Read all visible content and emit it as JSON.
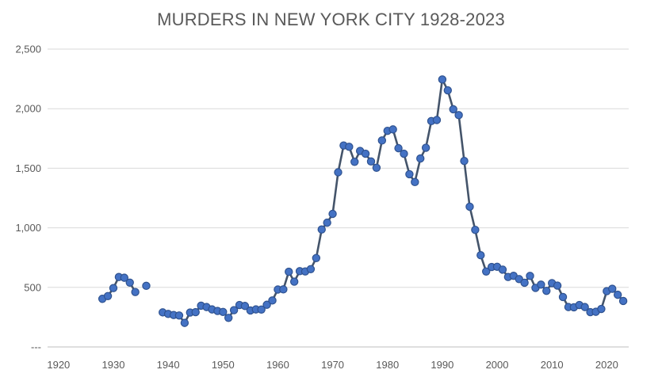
{
  "chart_data": {
    "type": "line",
    "title": "MURDERS IN NEW YORK CITY 1928-2023",
    "xlabel": "",
    "ylabel": "",
    "xlim": [
      1918,
      2024
    ],
    "ylim": [
      0,
      2500
    ],
    "x_ticks": [
      1920,
      1930,
      1940,
      1950,
      1960,
      1970,
      1980,
      1990,
      2000,
      2010,
      2020
    ],
    "x_tick_labels": [
      "1920",
      "1930",
      "1940",
      "1950",
      "1960",
      "1970",
      "1980",
      "1990",
      "2000",
      "2010",
      "2020"
    ],
    "y_ticks": [
      0,
      500,
      1000,
      1500,
      2000,
      2500
    ],
    "y_tick_labels": [
      "---",
      "500",
      "1,000",
      "1,500",
      "2,000",
      "2,500"
    ],
    "grid": "horizontal",
    "legend": "none",
    "line_color": "#44546a",
    "marker_color": "#4472c4",
    "marker_edge": "#2f528f",
    "series": [
      {
        "segments": [
          [
            [
              1928,
              404
            ],
            [
              1929,
              427
            ],
            [
              1930,
              494
            ],
            [
              1931,
              587
            ],
            [
              1932,
              581
            ],
            [
              1933,
              540
            ],
            [
              1934,
              461
            ]
          ],
          [
            [
              1936,
              513
            ]
          ],
          [
            [
              1939,
              290
            ],
            [
              1940,
              277
            ],
            [
              1941,
              268
            ],
            [
              1942,
              264
            ],
            [
              1943,
              202
            ],
            [
              1944,
              289
            ],
            [
              1945,
              292
            ],
            [
              1946,
              346
            ],
            [
              1947,
              335
            ],
            [
              1948,
              315
            ],
            [
              1949,
              302
            ],
            [
              1950,
              294
            ],
            [
              1951,
              244
            ],
            [
              1952,
              309
            ],
            [
              1953,
              352
            ],
            [
              1954,
              344
            ],
            [
              1955,
              306
            ],
            [
              1956,
              315
            ],
            [
              1957,
              314
            ],
            [
              1958,
              354
            ],
            [
              1959,
              390
            ],
            [
              1960,
              482
            ],
            [
              1961,
              483
            ],
            [
              1962,
              631
            ],
            [
              1963,
              548
            ],
            [
              1964,
              636
            ],
            [
              1965,
              634
            ],
            [
              1966,
              653
            ],
            [
              1967,
              746
            ],
            [
              1968,
              986
            ],
            [
              1969,
              1043
            ],
            [
              1970,
              1117
            ],
            [
              1971,
              1466
            ],
            [
              1972,
              1691
            ],
            [
              1973,
              1680
            ],
            [
              1974,
              1554
            ],
            [
              1975,
              1645
            ],
            [
              1976,
              1622
            ],
            [
              1977,
              1557
            ],
            [
              1978,
              1504
            ],
            [
              1979,
              1733
            ],
            [
              1980,
              1814
            ],
            [
              1981,
              1826
            ],
            [
              1982,
              1668
            ],
            [
              1983,
              1622
            ],
            [
              1984,
              1450
            ],
            [
              1985,
              1384
            ],
            [
              1986,
              1582
            ],
            [
              1987,
              1672
            ],
            [
              1988,
              1896
            ],
            [
              1989,
              1905
            ],
            [
              1990,
              2245
            ],
            [
              1991,
              2154
            ],
            [
              1992,
              1995
            ],
            [
              1993,
              1946
            ],
            [
              1994,
              1561
            ],
            [
              1995,
              1177
            ],
            [
              1996,
              983
            ],
            [
              1997,
              770
            ],
            [
              1998,
              633
            ],
            [
              1999,
              671
            ],
            [
              2000,
              673
            ],
            [
              2001,
              649
            ],
            [
              2002,
              587
            ],
            [
              2003,
              597
            ],
            [
              2004,
              570
            ],
            [
              2005,
              539
            ],
            [
              2006,
              596
            ],
            [
              2007,
              496
            ],
            [
              2008,
              523
            ],
            [
              2009,
              471
            ],
            [
              2010,
              536
            ],
            [
              2011,
              515
            ],
            [
              2012,
              419
            ],
            [
              2013,
              335
            ],
            [
              2014,
              333
            ],
            [
              2015,
              352
            ],
            [
              2016,
              335
            ],
            [
              2017,
              292
            ],
            [
              2018,
              295
            ],
            [
              2019,
              319
            ],
            [
              2020,
              468
            ],
            [
              2021,
              488
            ],
            [
              2022,
              438
            ],
            [
              2023,
              386
            ]
          ]
        ]
      }
    ]
  }
}
